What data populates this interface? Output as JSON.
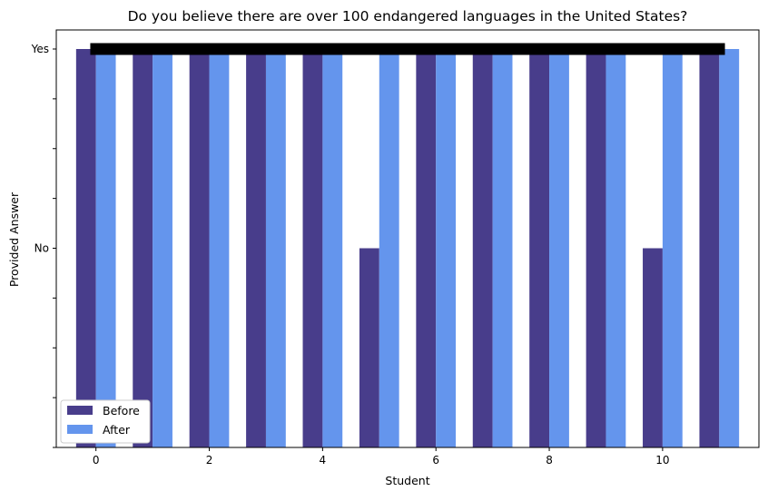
{
  "chart_data": {
    "type": "bar",
    "title": "Do you believe there are over 100 endangered languages in the United States?",
    "xlabel": "Student",
    "ylabel": "Provided Answer",
    "categories": [
      0,
      1,
      2,
      3,
      4,
      5,
      6,
      7,
      8,
      9,
      10,
      11
    ],
    "x_ticks": [
      0,
      2,
      4,
      6,
      8,
      10
    ],
    "xlim": [
      -0.7,
      11.7
    ],
    "ylim": [
      0,
      1
    ],
    "y_ticks": [
      0,
      0.125,
      0.25,
      0.375,
      0.5,
      0.625,
      0.75,
      0.875,
      1
    ],
    "y_tick_labels": [
      {
        "value": 0.5,
        "label": "No"
      },
      {
        "value": 1,
        "label": "Yes"
      }
    ],
    "series": [
      {
        "name": "Before",
        "color": "#483D8B",
        "values": [
          1,
          1,
          1,
          1,
          1,
          0.5,
          1,
          1,
          1,
          1,
          0.5,
          1
        ]
      },
      {
        "name": "After",
        "color": "#6495ED",
        "values": [
          1,
          1,
          1,
          1,
          1,
          1,
          1,
          1,
          1,
          1,
          1,
          1
        ]
      }
    ],
    "reference_line": {
      "y": 1,
      "x_range": [
        -0.1,
        11.1
      ],
      "color": "#000000"
    },
    "legend_position": "lower-left",
    "grid": false
  }
}
